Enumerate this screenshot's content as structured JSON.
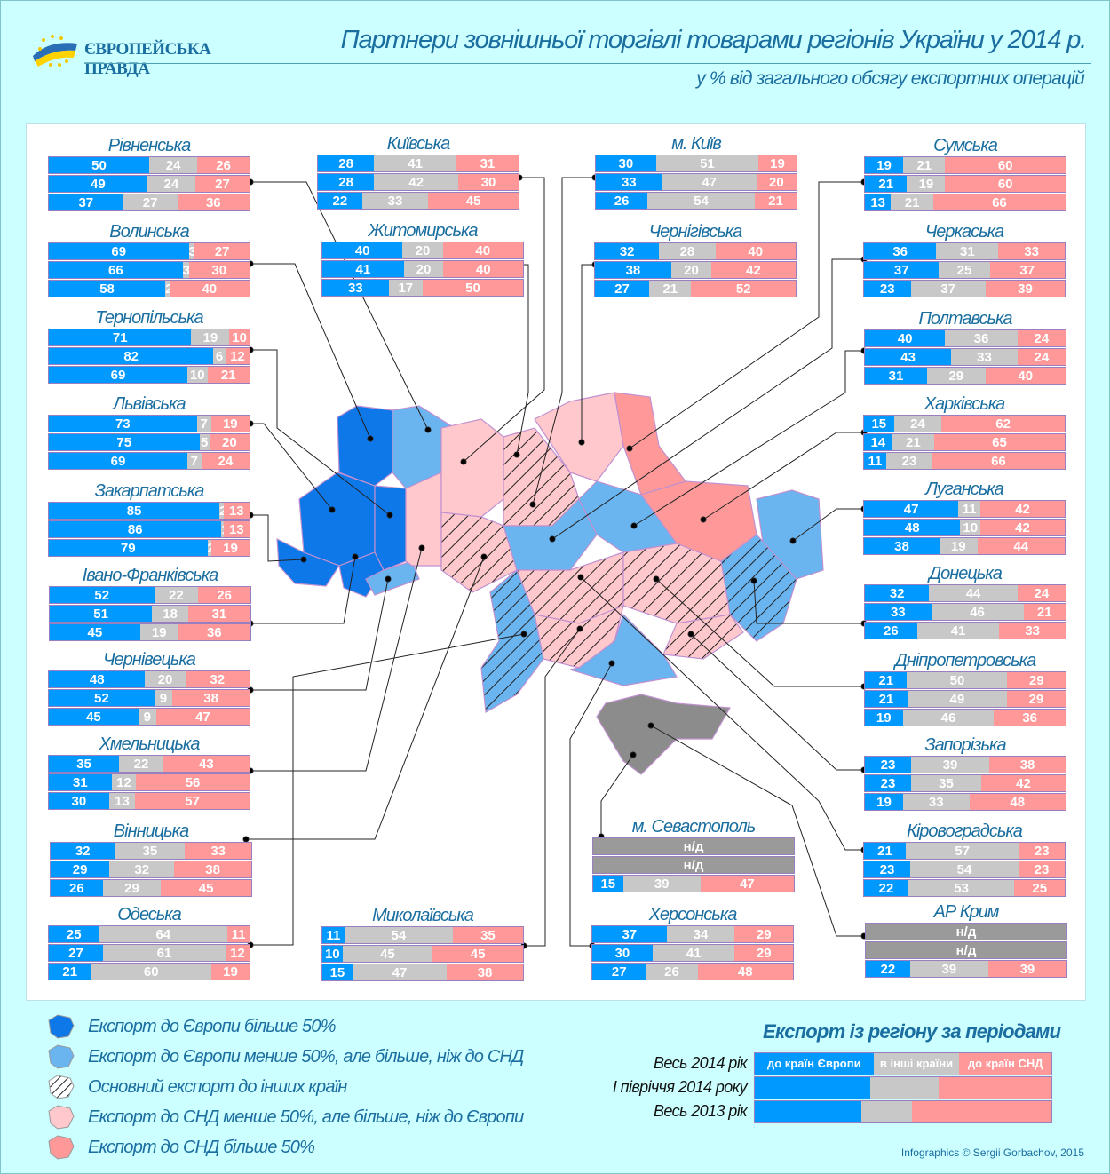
{
  "header": {
    "logo_text": "ЄВРОПЕЙСЬКА ПРАВДА",
    "title": "Партнери зовнішньої торгівлі товарами регіонів України у  2014 р.",
    "subtitle": "у % від загального обсягу експортних операцій"
  },
  "colors": {
    "europe": "#0099ff",
    "other": "#c8c8c8",
    "cis": "#ff9999",
    "na": "#9a9a9a",
    "title": "#1a6ea0",
    "background": "#ccffff"
  },
  "chart_data": {
    "type": "bar",
    "orientation": "horizontal-stacked",
    "title": "Партнери зовнішньої торгівлі товарами регіонів України у  2014 р.",
    "unit": "% від загального обсягу експортних операцій",
    "series_names": [
      "до країн Європи",
      "в інші країни",
      "до країн СНД"
    ],
    "periods": [
      "Весь 2014 рік",
      "І півріччя 2014 року",
      "Весь 2013 рік"
    ],
    "na_label": "н/д",
    "regions": [
      {
        "name": "Рівненська",
        "rows": [
          [
            50,
            24,
            26
          ],
          [
            49,
            24,
            27
          ],
          [
            37,
            27,
            36
          ]
        ]
      },
      {
        "name": "Волинська",
        "rows": [
          [
            69,
            3,
            27
          ],
          [
            66,
            3,
            30
          ],
          [
            58,
            2,
            40
          ]
        ]
      },
      {
        "name": "Тернопільська",
        "rows": [
          [
            71,
            19,
            10
          ],
          [
            82,
            6,
            12
          ],
          [
            69,
            10,
            21
          ]
        ]
      },
      {
        "name": "Львівська",
        "rows": [
          [
            73,
            7,
            19
          ],
          [
            75,
            5,
            20
          ],
          [
            69,
            7,
            24
          ]
        ]
      },
      {
        "name": "Закарпатська",
        "rows": [
          [
            85,
            2,
            13
          ],
          [
            86,
            1,
            13
          ],
          [
            79,
            2,
            19
          ]
        ]
      },
      {
        "name": "Івано-Франківська",
        "rows": [
          [
            52,
            22,
            26
          ],
          [
            51,
            18,
            31
          ],
          [
            45,
            19,
            36
          ]
        ]
      },
      {
        "name": "Чернівецька",
        "rows": [
          [
            48,
            20,
            32
          ],
          [
            52,
            9,
            38
          ],
          [
            45,
            9,
            47
          ]
        ]
      },
      {
        "name": "Хмельницька",
        "rows": [
          [
            35,
            22,
            43
          ],
          [
            31,
            12,
            56
          ],
          [
            30,
            13,
            57
          ]
        ]
      },
      {
        "name": "Вінницька",
        "rows": [
          [
            32,
            35,
            33
          ],
          [
            29,
            32,
            38
          ],
          [
            26,
            29,
            45
          ]
        ]
      },
      {
        "name": "Одеська",
        "rows": [
          [
            25,
            64,
            11
          ],
          [
            27,
            61,
            12
          ],
          [
            21,
            60,
            19
          ]
        ]
      },
      {
        "name": "Київська",
        "rows": [
          [
            28,
            41,
            31
          ],
          [
            28,
            42,
            30
          ],
          [
            22,
            33,
            45
          ]
        ]
      },
      {
        "name": "Житомирська",
        "rows": [
          [
            40,
            20,
            40
          ],
          [
            41,
            20,
            40
          ],
          [
            33,
            17,
            50
          ]
        ]
      },
      {
        "name": "Миколаївська",
        "rows": [
          [
            11,
            54,
            35
          ],
          [
            10,
            45,
            45
          ],
          [
            15,
            47,
            38
          ]
        ]
      },
      {
        "name": "м. Київ",
        "rows": [
          [
            30,
            51,
            19
          ],
          [
            33,
            47,
            20
          ],
          [
            26,
            54,
            21
          ]
        ]
      },
      {
        "name": "Чернігівська",
        "rows": [
          [
            32,
            28,
            40
          ],
          [
            38,
            20,
            42
          ],
          [
            27,
            21,
            52
          ]
        ]
      },
      {
        "name": "м. Севастополь",
        "rows": [
          null,
          null,
          [
            15,
            39,
            47
          ]
        ]
      },
      {
        "name": "Херсонська",
        "rows": [
          [
            37,
            34,
            29
          ],
          [
            30,
            41,
            29
          ],
          [
            27,
            26,
            48
          ]
        ]
      },
      {
        "name": "Сумська",
        "rows": [
          [
            19,
            21,
            60
          ],
          [
            21,
            19,
            60
          ],
          [
            13,
            21,
            66
          ]
        ]
      },
      {
        "name": "Черкаська",
        "rows": [
          [
            36,
            31,
            33
          ],
          [
            37,
            25,
            37
          ],
          [
            23,
            37,
            39
          ]
        ]
      },
      {
        "name": "Полтавська",
        "rows": [
          [
            40,
            36,
            24
          ],
          [
            43,
            33,
            24
          ],
          [
            31,
            29,
            40
          ]
        ]
      },
      {
        "name": "Харківська",
        "rows": [
          [
            15,
            24,
            62
          ],
          [
            14,
            21,
            65
          ],
          [
            11,
            23,
            66
          ]
        ]
      },
      {
        "name": "Луганська",
        "rows": [
          [
            47,
            11,
            42
          ],
          [
            48,
            10,
            42
          ],
          [
            38,
            19,
            44
          ]
        ]
      },
      {
        "name": "Донецька",
        "rows": [
          [
            32,
            44,
            24
          ],
          [
            33,
            46,
            21
          ],
          [
            26,
            41,
            33
          ]
        ]
      },
      {
        "name": "Дніпропетровська",
        "rows": [
          [
            21,
            50,
            29
          ],
          [
            21,
            49,
            29
          ],
          [
            19,
            46,
            36
          ]
        ]
      },
      {
        "name": "Запорізька",
        "rows": [
          [
            23,
            39,
            38
          ],
          [
            23,
            35,
            42
          ],
          [
            19,
            33,
            48
          ]
        ]
      },
      {
        "name": "Кіровоградська",
        "rows": [
          [
            21,
            57,
            23
          ],
          [
            23,
            54,
            23
          ],
          [
            22,
            53,
            25
          ]
        ]
      },
      {
        "name": "АР Крим",
        "rows": [
          null,
          null,
          [
            22,
            39,
            39
          ]
        ]
      }
    ]
  },
  "legend": [
    {
      "label": "Експорт до Європи більше 50%",
      "icon": "dark-blue-region-icon"
    },
    {
      "label": "Експорт до Європи менше 50%, але більше, ніж до СНД",
      "icon": "light-blue-region-icon"
    },
    {
      "label": "Основний експорт до інших країн",
      "icon": "hatched-region-icon"
    },
    {
      "label": "Експорт до СНД менше 50%, але більше, ніж до Європи",
      "icon": "light-pink-region-icon"
    },
    {
      "label": "Експорт до СНД більше 50%",
      "icon": "pink-region-icon"
    }
  ],
  "periods_key": {
    "title": "Експорт із регіону за періодами",
    "rows": [
      "Весь 2014 рік",
      "І півріччя 2014 року",
      "Весь 2013 рік"
    ],
    "segments": [
      "до країн Європи",
      "в інші країни",
      "до країн СНД"
    ]
  },
  "credit": "Infographics © Sergii Gorbachov, 2015"
}
